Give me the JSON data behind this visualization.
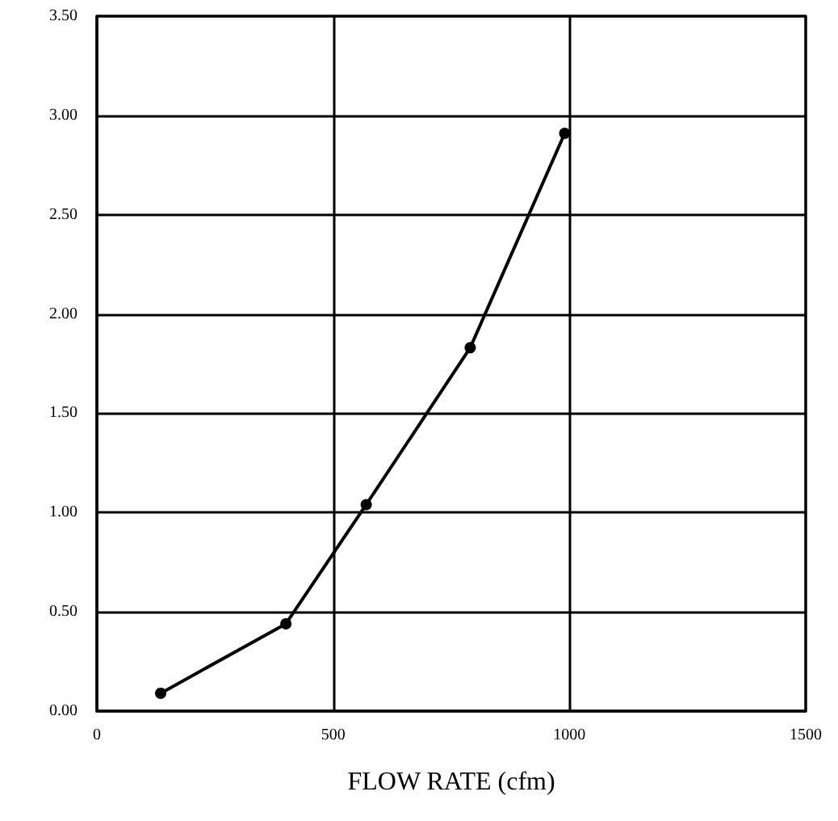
{
  "chart_data": {
    "type": "line",
    "xlabel": "FLOW RATE (cfm)",
    "x": [
      135,
      400,
      570,
      790,
      990
    ],
    "series": [
      {
        "color": "#000000",
        "values": [
          0.09,
          0.44,
          1.04,
          1.83,
          2.91
        ]
      }
    ],
    "xlim": [
      0,
      1500
    ],
    "xticks": [
      0,
      500,
      1000,
      1500
    ],
    "ylim": [
      0,
      3.5
    ],
    "yticks": [
      {
        "value": 0,
        "label": "0.00"
      },
      {
        "value": 0.5,
        "label": "0.50"
      },
      {
        "value": 1,
        "label": "1.00"
      },
      {
        "value": 1.5,
        "label": "1.50"
      },
      {
        "value": 2,
        "label": "2.00"
      },
      {
        "value": 2.5,
        "label": "2.50"
      },
      {
        "value": 3,
        "label": "3.00"
      },
      {
        "value": 3.5,
        "label": "3.50"
      }
    ],
    "grid": true,
    "marker": "circle",
    "line_style": "solid"
  }
}
